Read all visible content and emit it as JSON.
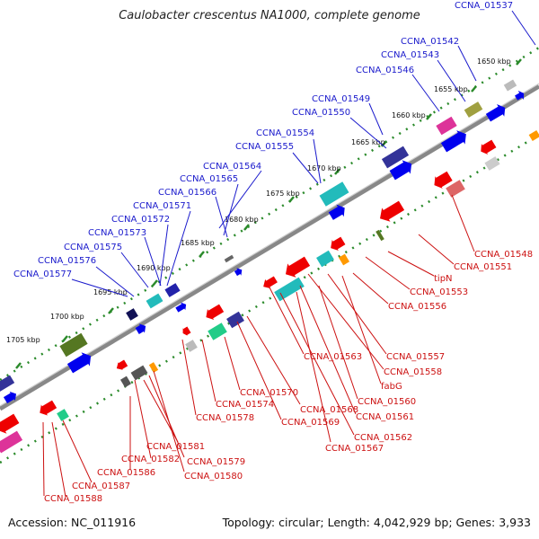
{
  "title": "Caulobacter crescentus NA1000, complete genome",
  "footer": {
    "accession": "Accession: NC_011916",
    "summary": "Topology: circular; Length: 4,042,929 bp; Genes: 3,933"
  },
  "ruler_ticks": [
    "1650 kbp",
    "1655 kbp",
    "1660 kbp",
    "1665 kbp",
    "1670 kbp",
    "1675 kbp",
    "1680 kbp",
    "1685 kbp",
    "1690 kbp",
    "1695 kbp",
    "1700 kbp",
    "1705 kbp"
  ],
  "gene_labels_top": [
    "CCNA_01537",
    "CCNA_01542",
    "CCNA_01543",
    "CCNA_01546",
    "CCNA_01549",
    "CCNA_01550",
    "CCNA_01554",
    "CCNA_01555",
    "CCNA_01564",
    "CCNA_01565",
    "CCNA_01566",
    "CCNA_01571",
    "CCNA_01572",
    "CCNA_01573",
    "CCNA_01575",
    "CCNA_01576",
    "CCNA_01577"
  ],
  "gene_labels_bottom": [
    "CCNA_01548",
    "CCNA_01551",
    "tipN",
    "CCNA_01553",
    "CCNA_01556",
    "CCNA_01557",
    "CCNA_01558",
    "fabG",
    "CCNA_01560",
    "CCNA_01561",
    "CCNA_01562",
    "CCNA_01567",
    "CCNA_01563",
    "CCNA_01568",
    "CCNA_01569",
    "CCNA_01570",
    "CCNA_01574",
    "CCNA_01578",
    "CCNA_01581",
    "CCNA_01582",
    "CCNA_01579",
    "CCNA_01580",
    "CCNA_01586",
    "CCNA_01587",
    "CCNA_01588"
  ],
  "colors": {
    "forward": "#0000ee",
    "reverse": "#ee0000",
    "axis": "#808080",
    "ruler": "#2a8a2a",
    "label_top": "#1a1acc",
    "label_bottom": "#cc1111"
  }
}
